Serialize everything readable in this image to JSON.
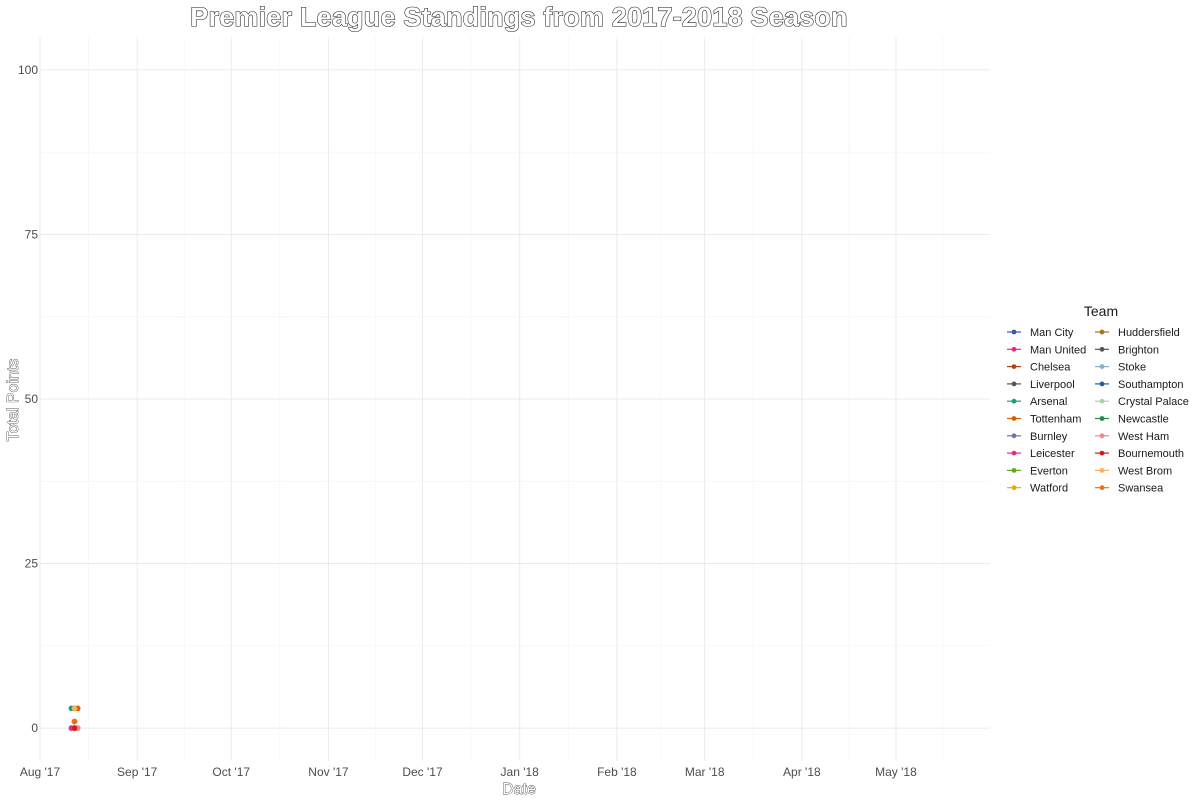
{
  "chart_data": {
    "type": "line",
    "title": "Premier League Standings from 2017-2018 Season",
    "xlabel": "Date",
    "ylabel": "Total Points",
    "x_type": "date",
    "xlim": [
      "2017-08-01",
      "2018-05-31"
    ],
    "ylim": [
      -5,
      105
    ],
    "y_ticks": [
      0,
      25,
      50,
      75,
      100
    ],
    "x_ticks": [
      {
        "date": "2017-08-01",
        "label": "Aug '17"
      },
      {
        "date": "2017-09-01",
        "label": "Sep '17"
      },
      {
        "date": "2017-10-01",
        "label": "Oct '17"
      },
      {
        "date": "2017-11-01",
        "label": "Nov '17"
      },
      {
        "date": "2017-12-01",
        "label": "Dec '17"
      },
      {
        "date": "2018-01-01",
        "label": "Jan '18"
      },
      {
        "date": "2018-02-01",
        "label": "Feb '18"
      },
      {
        "date": "2018-03-01",
        "label": "Mar '18"
      },
      {
        "date": "2018-04-01",
        "label": "Apr '18"
      },
      {
        "date": "2018-05-01",
        "label": "May '18"
      }
    ],
    "grid": true,
    "legend_title": "Team",
    "legend_position": "right",
    "series": [
      {
        "name": "Man City",
        "color": "#3b5ba5",
        "points": [
          {
            "x": "2017-08-12",
            "y": 3
          }
        ]
      },
      {
        "name": "Man United",
        "color": "#e7298a",
        "points": [
          {
            "x": "2017-08-13",
            "y": 3
          }
        ]
      },
      {
        "name": "Chelsea",
        "color": "#b2430e",
        "points": [
          {
            "x": "2017-08-12",
            "y": 0
          }
        ]
      },
      {
        "name": "Liverpool",
        "color": "#555555",
        "points": [
          {
            "x": "2017-08-12",
            "y": 1
          }
        ]
      },
      {
        "name": "Arsenal",
        "color": "#1b9e77",
        "points": [
          {
            "x": "2017-08-11",
            "y": 3
          }
        ]
      },
      {
        "name": "Tottenham",
        "color": "#d95f02",
        "points": [
          {
            "x": "2017-08-13",
            "y": 3
          }
        ]
      },
      {
        "name": "Burnley",
        "color": "#7570b3",
        "points": [
          {
            "x": "2017-08-12",
            "y": 3
          }
        ]
      },
      {
        "name": "Leicester",
        "color": "#e7298a",
        "points": [
          {
            "x": "2017-08-11",
            "y": 0
          }
        ]
      },
      {
        "name": "Everton",
        "color": "#66a61e",
        "points": [
          {
            "x": "2017-08-12",
            "y": 3
          }
        ]
      },
      {
        "name": "Watford",
        "color": "#e6ab02",
        "points": [
          {
            "x": "2017-08-12",
            "y": 1
          }
        ]
      },
      {
        "name": "Huddersfield",
        "color": "#a6761d",
        "points": [
          {
            "x": "2017-08-12",
            "y": 3
          }
        ]
      },
      {
        "name": "Brighton",
        "color": "#555555",
        "points": [
          {
            "x": "2017-08-12",
            "y": 0
          }
        ]
      },
      {
        "name": "Stoke",
        "color": "#80b1d3",
        "points": [
          {
            "x": "2017-08-12",
            "y": 0
          }
        ]
      },
      {
        "name": "Southampton",
        "color": "#1f5fa8",
        "points": [
          {
            "x": "2017-08-12",
            "y": 0
          }
        ]
      },
      {
        "name": "Crystal Palace",
        "color": "#a1d99b",
        "points": [
          {
            "x": "2017-08-12",
            "y": 0
          }
        ]
      },
      {
        "name": "Newcastle",
        "color": "#238b45",
        "points": [
          {
            "x": "2017-08-13",
            "y": 0
          }
        ]
      },
      {
        "name": "West Ham",
        "color": "#f4877f",
        "points": [
          {
            "x": "2017-08-13",
            "y": 0
          }
        ]
      },
      {
        "name": "Bournemouth",
        "color": "#d7191c",
        "points": [
          {
            "x": "2017-08-12",
            "y": 0
          }
        ]
      },
      {
        "name": "West Brom",
        "color": "#fdae61",
        "points": [
          {
            "x": "2017-08-12",
            "y": 3
          }
        ]
      },
      {
        "name": "Swansea",
        "color": "#f46d1e",
        "points": [
          {
            "x": "2017-08-12",
            "y": 1
          }
        ]
      }
    ]
  }
}
